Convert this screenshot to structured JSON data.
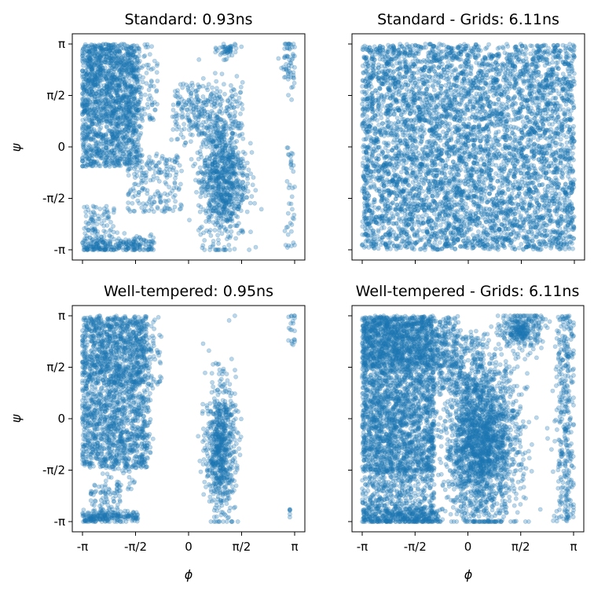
{
  "figure": {
    "xlabel": "ϕ",
    "ylabel": "ψ",
    "tick_labels": [
      "-π",
      "-π/2",
      "0",
      "π/2",
      "π"
    ]
  },
  "chart_data": [
    {
      "type": "scatter",
      "title": "Standard: 0.93ns",
      "xlabel": "",
      "ylabel": "ψ",
      "xlim": [
        -3.14159,
        3.14159
      ],
      "ylim": [
        -3.14159,
        3.14159
      ],
      "color": "#1f77b4",
      "region": "standard-sparse"
    },
    {
      "type": "scatter",
      "title": "Standard - Grids: 6.11ns",
      "xlabel": "",
      "ylabel": "",
      "xlim": [
        -3.14159,
        3.14159
      ],
      "ylim": [
        -3.14159,
        3.14159
      ],
      "color": "#1f77b4",
      "region": "full-coverage"
    },
    {
      "type": "scatter",
      "title": "Well-tempered: 0.95ns",
      "xlabel": "ϕ",
      "ylabel": "ψ",
      "xlim": [
        -3.14159,
        3.14159
      ],
      "ylim": [
        -3.14159,
        3.14159
      ],
      "color": "#1f77b4",
      "region": "welltempered-sparse"
    },
    {
      "type": "scatter",
      "title": "Well-tempered - Grids: 6.11ns",
      "xlabel": "ϕ",
      "ylabel": "",
      "xlim": [
        -3.14159,
        3.14159
      ],
      "ylim": [
        -3.14159,
        3.14159
      ],
      "color": "#1f77b4",
      "region": "welltempered-dense"
    }
  ]
}
